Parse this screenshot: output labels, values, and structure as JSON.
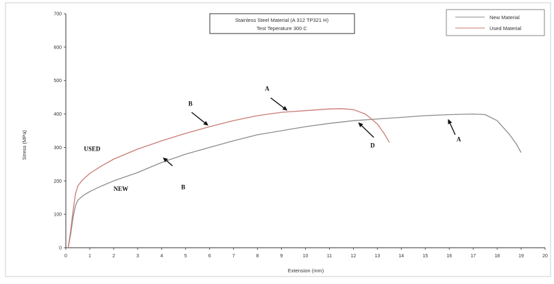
{
  "chart_data": {
    "type": "line",
    "title": [
      "Stainless Steel Material (A 312 TP321 H)",
      "Test Teperature 300 C"
    ],
    "xlabel": "Extension (mm)",
    "ylabel": "Stress (MPa)",
    "xlim": [
      0,
      20
    ],
    "ylim": [
      0,
      700
    ],
    "xticks": [
      "0",
      "1",
      "2",
      "3",
      "4",
      "5",
      "6",
      "7",
      "8",
      "9",
      "10",
      "11",
      "12",
      "13",
      "14",
      "15",
      "16",
      "17",
      "18",
      "19",
      "20"
    ],
    "yticks": [
      "0",
      "100",
      "200",
      "300",
      "400",
      "500",
      "600",
      "700"
    ],
    "legend_position": "top-right",
    "grid": false,
    "series": [
      {
        "name": "New Material",
        "color": "#8c8c8c",
        "points": [
          [
            0.1,
            0
          ],
          [
            0.2,
            40
          ],
          [
            0.3,
            90
          ],
          [
            0.4,
            125
          ],
          [
            0.5,
            142
          ],
          [
            0.7,
            155
          ],
          [
            1,
            168
          ],
          [
            1.5,
            185
          ],
          [
            2,
            200
          ],
          [
            3,
            225
          ],
          [
            4,
            255
          ],
          [
            5,
            280
          ],
          [
            6,
            300
          ],
          [
            7,
            320
          ],
          [
            8,
            338
          ],
          [
            9,
            350
          ],
          [
            10,
            362
          ],
          [
            11,
            372
          ],
          [
            12,
            380
          ],
          [
            13,
            385
          ],
          [
            14,
            390
          ],
          [
            15,
            395
          ],
          [
            16,
            398
          ],
          [
            17,
            400
          ],
          [
            17.5,
            398
          ],
          [
            18,
            380
          ],
          [
            18.5,
            340
          ],
          [
            18.8,
            310
          ],
          [
            19,
            285
          ]
        ]
      },
      {
        "name": "Used Material",
        "color": "#c97a72",
        "points": [
          [
            0.1,
            0
          ],
          [
            0.2,
            50
          ],
          [
            0.3,
            110
          ],
          [
            0.4,
            160
          ],
          [
            0.5,
            185
          ],
          [
            0.7,
            203
          ],
          [
            1,
            222
          ],
          [
            1.5,
            245
          ],
          [
            2,
            265
          ],
          [
            3,
            295
          ],
          [
            4,
            320
          ],
          [
            5,
            342
          ],
          [
            6,
            362
          ],
          [
            7,
            380
          ],
          [
            8,
            395
          ],
          [
            9,
            405
          ],
          [
            10,
            410
          ],
          [
            11,
            415
          ],
          [
            11.5,
            416
          ],
          [
            12,
            413
          ],
          [
            12.5,
            400
          ],
          [
            13,
            370
          ],
          [
            13.3,
            340
          ],
          [
            13.5,
            315
          ]
        ]
      }
    ],
    "annotations": [
      {
        "text": "USED",
        "x": 1.1,
        "y": 290
      },
      {
        "text": "NEW",
        "x": 2.3,
        "y": 170
      },
      {
        "text": "B",
        "x": 5.2,
        "y": 425
      },
      {
        "text": "A",
        "x": 8.4,
        "y": 470
      },
      {
        "text": "B",
        "x": 4.9,
        "y": 175
      },
      {
        "text": "D",
        "x": 12.8,
        "y": 300
      },
      {
        "text": "A",
        "x": 16.4,
        "y": 318
      }
    ],
    "arrows": [
      {
        "from": [
          5.25,
          405
        ],
        "to": [
          5.95,
          365
        ]
      },
      {
        "from": [
          8.55,
          448
        ],
        "to": [
          9.25,
          410
        ]
      },
      {
        "from": [
          4.45,
          245
        ],
        "to": [
          4.05,
          270
        ]
      },
      {
        "from": [
          12.85,
          330
        ],
        "to": [
          12.2,
          375
        ]
      },
      {
        "from": [
          16.25,
          338
        ],
        "to": [
          15.95,
          385
        ]
      }
    ]
  }
}
